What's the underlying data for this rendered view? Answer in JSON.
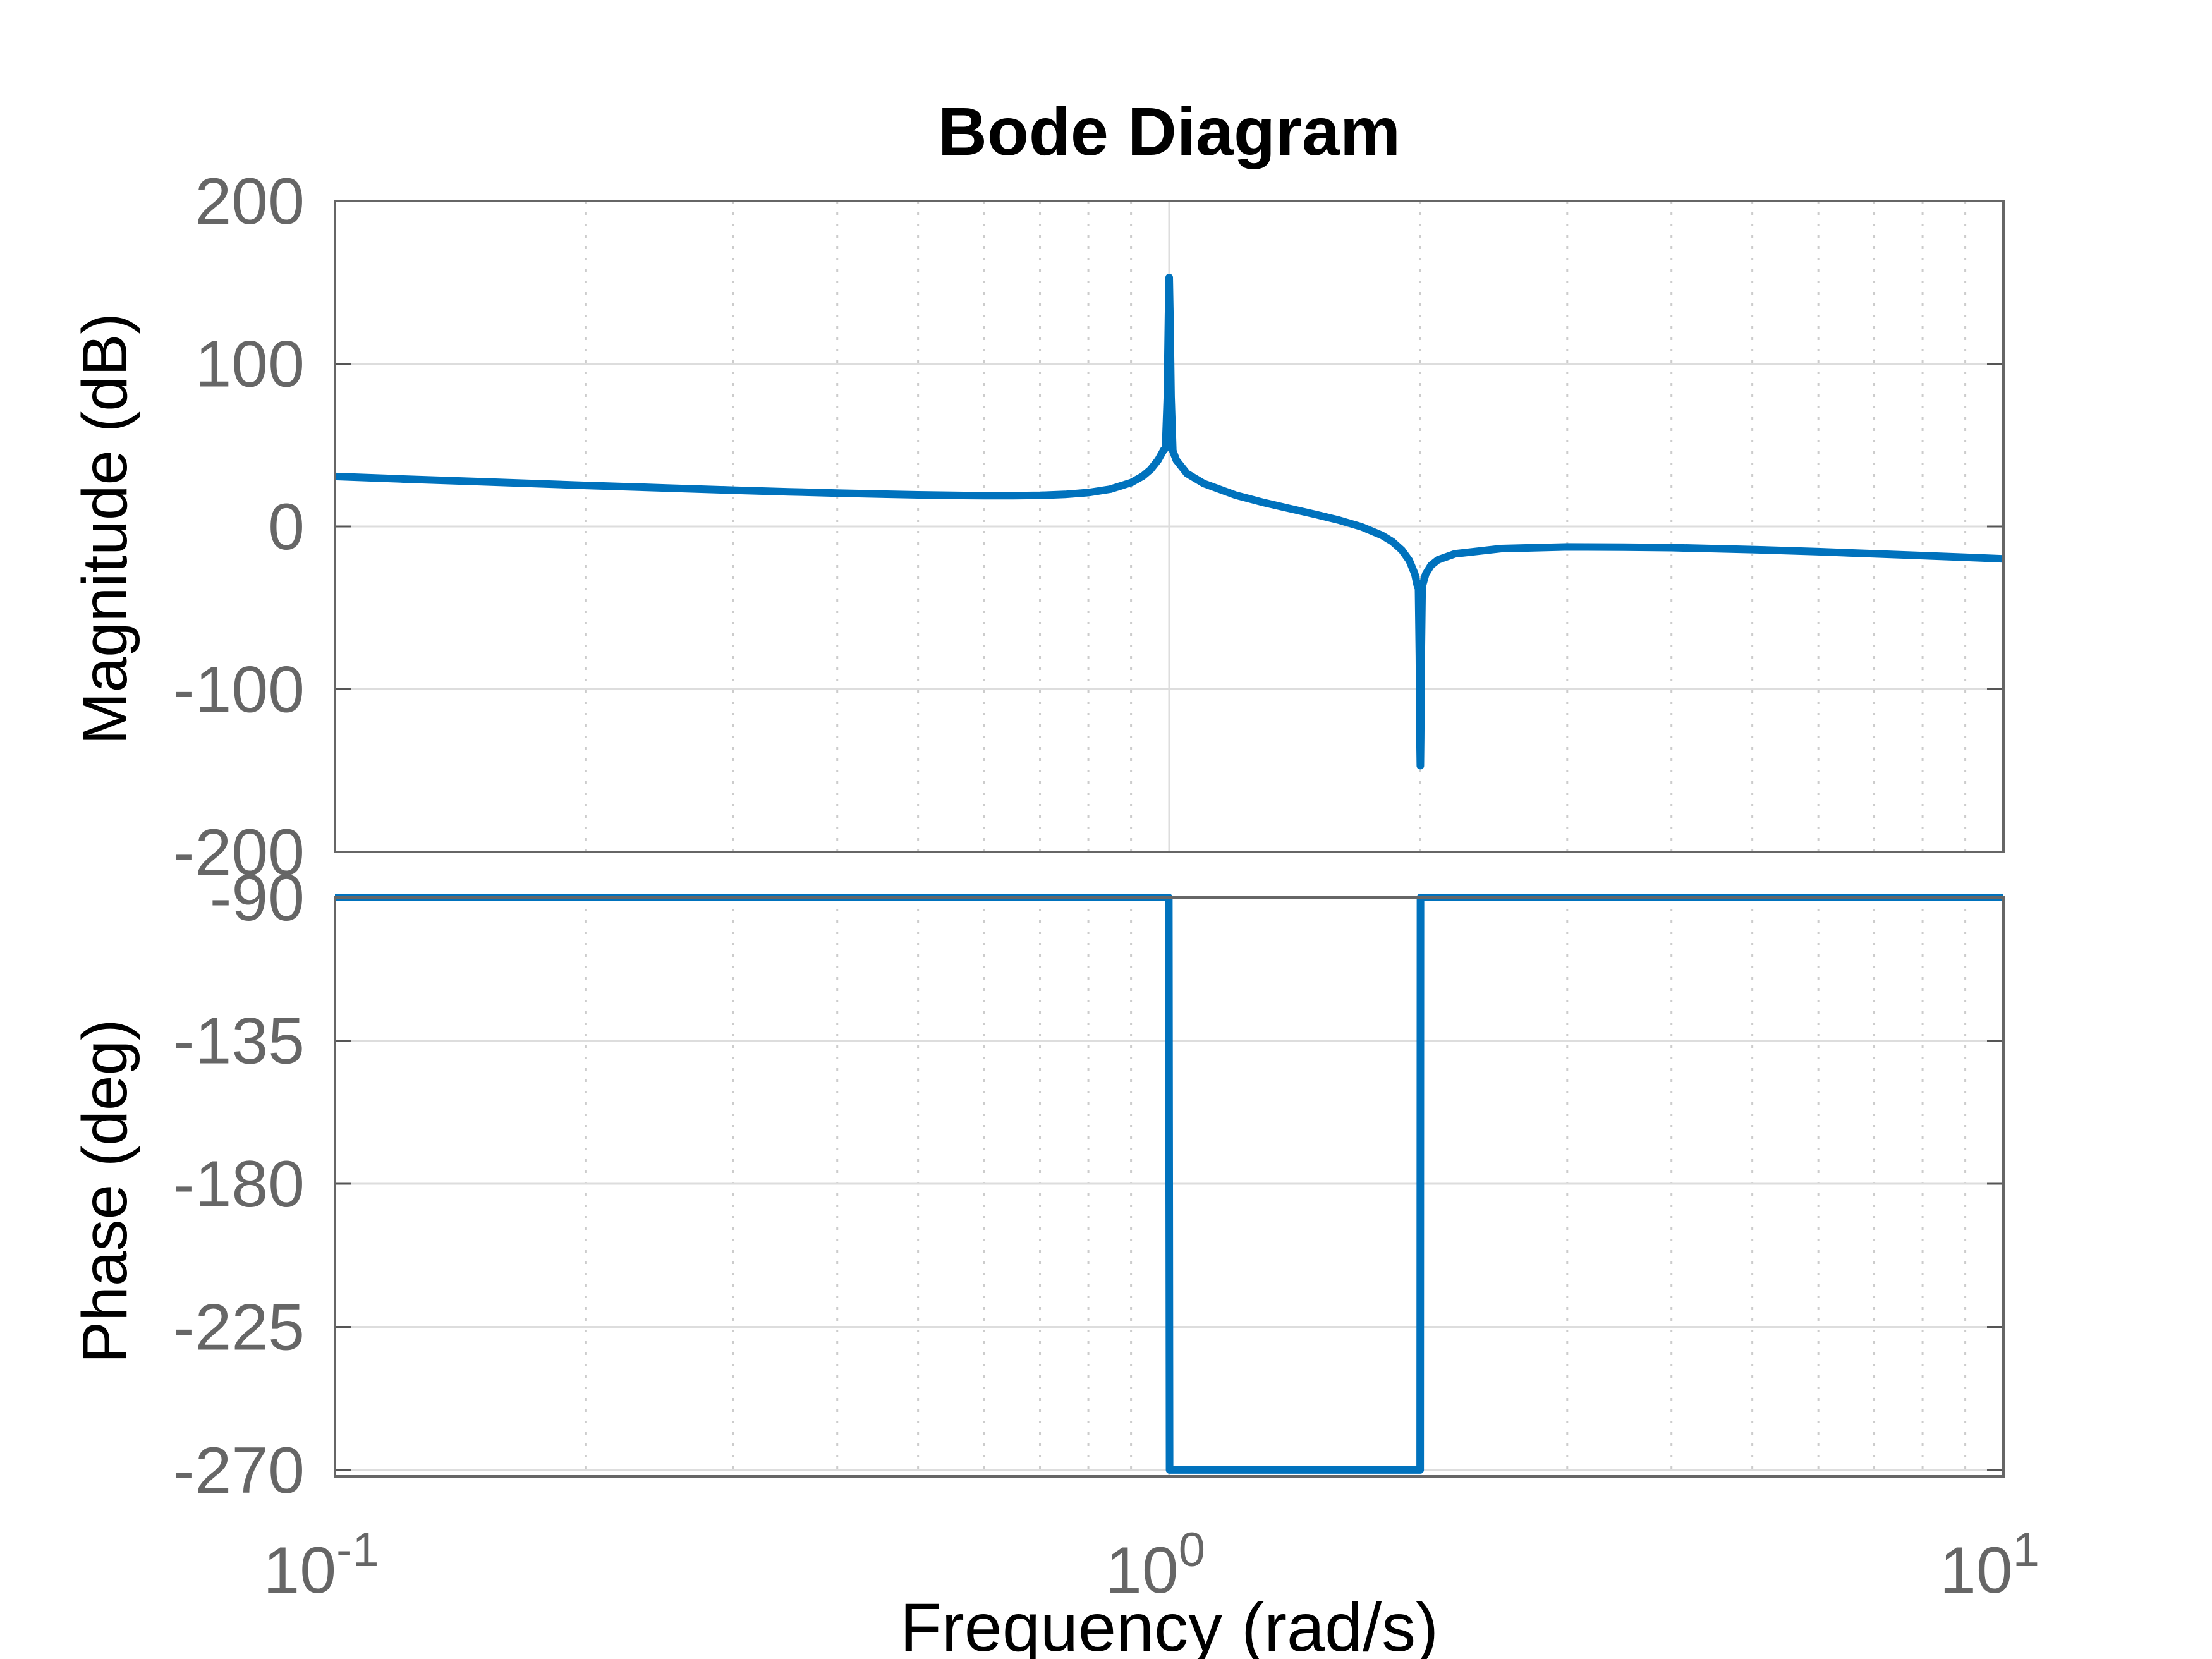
{
  "chart_data": {
    "type": "line",
    "title": "Bode Diagram",
    "xlabel": "Frequency  (rad/s)",
    "xscale": "log",
    "xlim": [
      0.1,
      10
    ],
    "x_ticks": [
      {
        "value": 0.1,
        "base": "10",
        "exp": "-1"
      },
      {
        "value": 1,
        "base": "10",
        "exp": "0"
      },
      {
        "value": 10,
        "base": "10",
        "exp": "1"
      }
    ],
    "grid": true,
    "line_color": "#0072bd",
    "subplots": [
      {
        "name": "magnitude",
        "ylabel": "Magnitude (dB)",
        "ylim": [
          -200,
          200
        ],
        "y_ticks": [
          "200",
          "100",
          "0",
          "-100",
          "-200"
        ],
        "series": [
          {
            "points": [
              [
                0.1,
                30.7
              ],
              [
                0.12,
                29.2
              ],
              [
                0.15,
                27.5
              ],
              [
                0.2,
                25.2
              ],
              [
                0.25,
                23.6
              ],
              [
                0.3,
                22.3
              ],
              [
                0.35,
                21.3
              ],
              [
                0.4,
                20.5
              ],
              [
                0.45,
                19.9
              ],
              [
                0.5,
                19.4
              ],
              [
                0.55,
                19.1
              ],
              [
                0.6,
                18.9
              ],
              [
                0.65,
                18.9
              ],
              [
                0.7,
                19.1
              ],
              [
                0.75,
                19.7
              ],
              [
                0.8,
                20.8
              ],
              [
                0.85,
                22.9
              ],
              [
                0.9,
                26.9
              ],
              [
                0.93,
                31.0
              ],
              [
                0.95,
                35.0
              ],
              [
                0.97,
                40.8
              ],
              [
                0.985,
                47.0
              ],
              [
                0.99,
                48.0
              ],
              [
                0.995,
                80.0
              ],
              [
                0.998,
                130.0
              ],
              [
                1.0,
                153.0
              ],
              [
                1.002,
                130.0
              ],
              [
                1.005,
                80.0
              ],
              [
                1.01,
                46.5
              ],
              [
                1.02,
                40.7
              ],
              [
                1.05,
                32.6
              ],
              [
                1.1,
                26.4
              ],
              [
                1.2,
                19.3
              ],
              [
                1.3,
                14.6
              ],
              [
                1.4,
                10.8
              ],
              [
                1.5,
                7.3
              ],
              [
                1.6,
                3.8
              ],
              [
                1.7,
                -0.2
              ],
              [
                1.8,
                -5.5
              ],
              [
                1.85,
                -9.2
              ],
              [
                1.9,
                -14.5
              ],
              [
                1.94,
                -20.9
              ],
              [
                1.97,
                -29.2
              ],
              [
                1.985,
                -37.0
              ],
              [
                1.99,
                -38.0
              ],
              [
                1.995,
                -80.0
              ],
              [
                1.998,
                -130.0
              ],
              [
                2.0,
                -147.0
              ],
              [
                2.002,
                -130.0
              ],
              [
                2.005,
                -80.0
              ],
              [
                2.01,
                -37.0
              ],
              [
                2.03,
                -29.2
              ],
              [
                2.06,
                -23.9
              ],
              [
                2.1,
                -20.5
              ],
              [
                2.2,
                -16.8
              ],
              [
                2.5,
                -13.6
              ],
              [
                3.0,
                -12.6
              ],
              [
                3.5,
                -12.7
              ],
              [
                4.0,
                -13.0
              ],
              [
                5.0,
                -14.2
              ],
              [
                6.0,
                -15.5
              ],
              [
                7.0,
                -16.8
              ],
              [
                8.0,
                -17.9
              ],
              [
                9.0,
                -18.9
              ],
              [
                10.0,
                -19.9
              ]
            ]
          }
        ]
      },
      {
        "name": "phase",
        "ylabel": "Phase (deg)",
        "ylim": [
          -272,
          -90
        ],
        "y_ticks": [
          "-90",
          "-135",
          "-180",
          "-225",
          "-270"
        ],
        "series": [
          {
            "points": [
              [
                0.1,
                -90
              ],
              [
                0.999,
                -90
              ],
              [
                1.001,
                -270
              ],
              [
                1.999,
                -270
              ],
              [
                2.001,
                -90
              ],
              [
                10,
                -90
              ]
            ]
          }
        ]
      }
    ]
  }
}
